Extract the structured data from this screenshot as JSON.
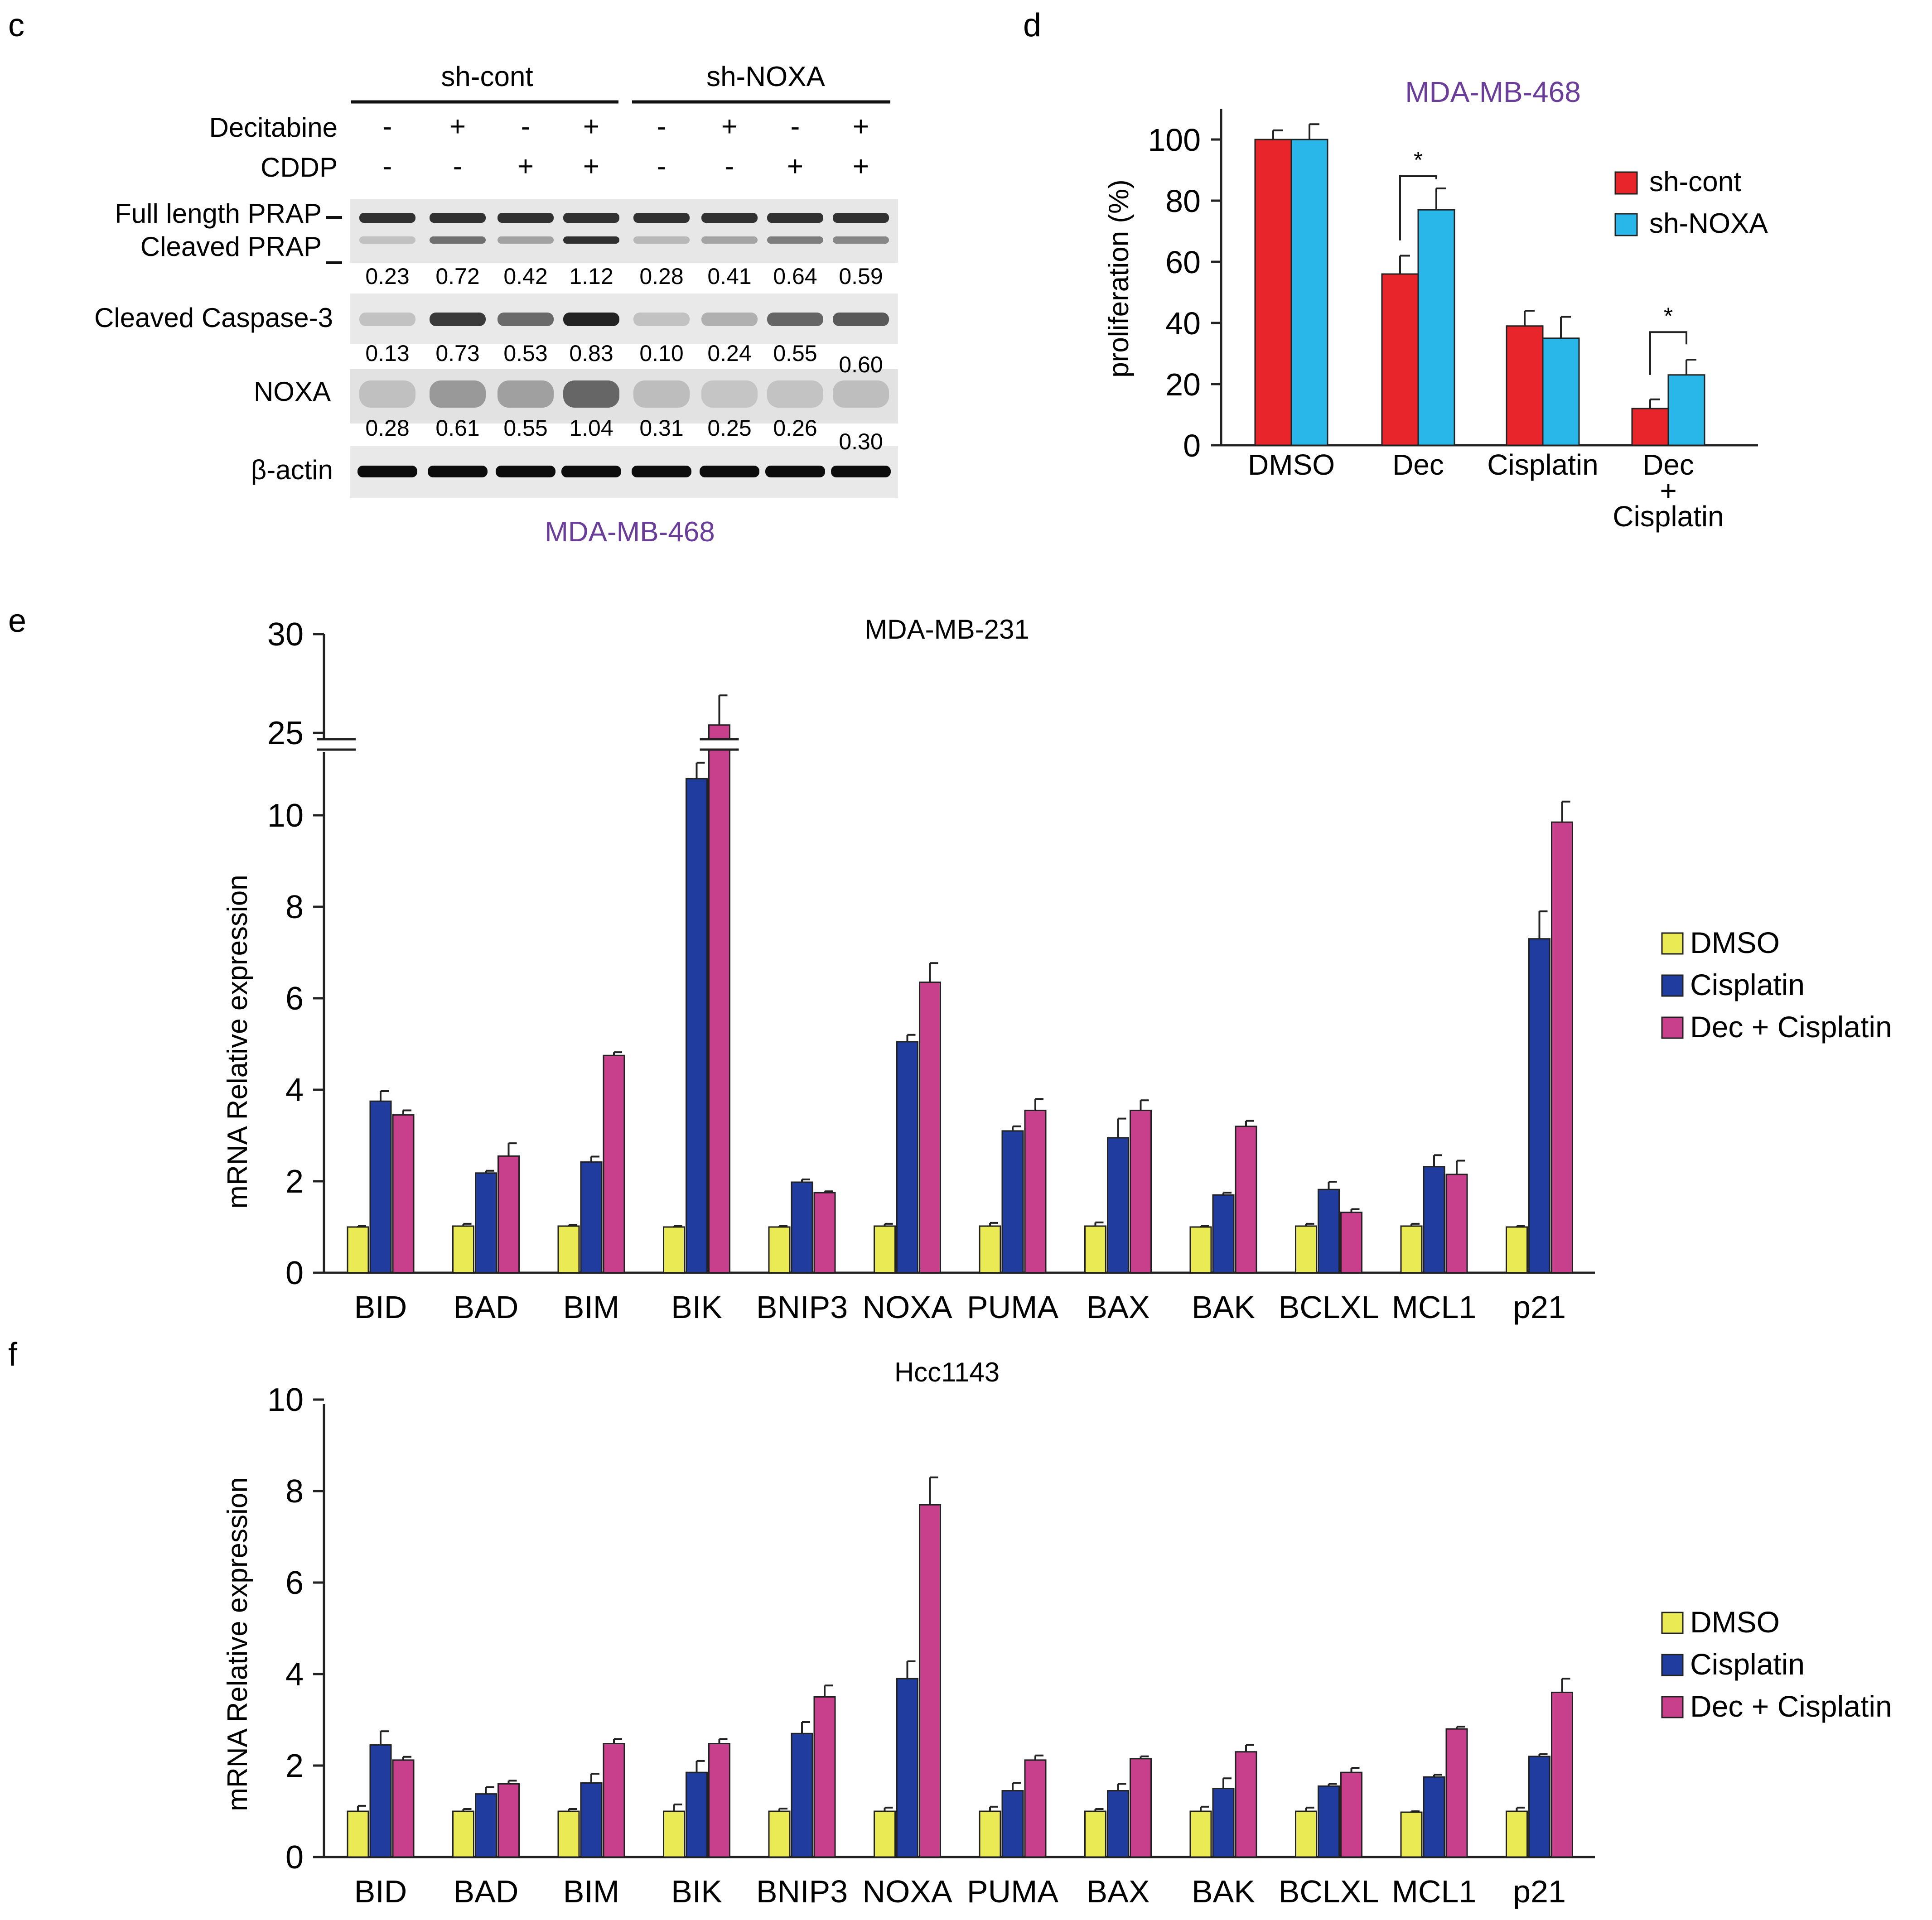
{
  "colors": {
    "sh_cont": "#e8252a",
    "sh_noxa": "#29b6e8",
    "dmso": "#eaea55",
    "cisplatin": "#1f3c9e",
    "dec_cis": "#c8408c",
    "purple_text": "#6a3d9a"
  },
  "panel_c": {
    "letter": "c",
    "groups": [
      "sh-cont",
      "sh-NOXA"
    ],
    "row_labels": {
      "decitabine": "Decitabine",
      "cddp": "CDDP"
    },
    "decitabine": [
      "-",
      "+",
      "-",
      "+",
      "-",
      "+",
      "-",
      "+"
    ],
    "cddp": [
      "-",
      "-",
      "+",
      "+",
      "-",
      "-",
      "+",
      "+"
    ],
    "band_labels": {
      "full_parp": "Full length PRAP",
      "cleaved_parp": "Cleaved PRAP",
      "caspase": "Cleaved Caspase-3",
      "noxa": "NOXA",
      "actin": "β-actin"
    },
    "parp_values": [
      "0.23",
      "0.72",
      "0.42",
      "1.12",
      "0.28",
      "0.41",
      "0.64",
      "0.59"
    ],
    "caspase_values": [
      "0.13",
      "0.73",
      "0.53",
      "0.83",
      "0.10",
      "0.24",
      "0.55",
      "0.60"
    ],
    "noxa_values": [
      "0.28",
      "0.61",
      "0.55",
      "1.04",
      "0.31",
      "0.25",
      "0.26",
      "0.30"
    ],
    "cell_line": "MDA-MB-468"
  },
  "chart_data": [
    {
      "panel": "d",
      "type": "bar",
      "title": "MDA-MB-468",
      "xlabel": "",
      "ylabel": "proliferation (%)",
      "ylim": [
        0,
        110
      ],
      "yticks": [
        0,
        20,
        40,
        60,
        80,
        100
      ],
      "categories": [
        "DMSO",
        "Dec",
        "Cisplatin",
        "Dec + Cisplatin"
      ],
      "category_lines": [
        [
          "DMSO"
        ],
        [
          "Dec"
        ],
        [
          "Cisplatin"
        ],
        [
          "Dec",
          "+",
          "Cisplatin"
        ]
      ],
      "series": [
        {
          "name": "sh-cont",
          "values": [
            100,
            56,
            39,
            12
          ],
          "errors": [
            3,
            6,
            5,
            3
          ]
        },
        {
          "name": "sh-NOXA",
          "values": [
            100,
            77,
            35,
            23
          ],
          "errors": [
            5,
            7,
            7,
            5
          ]
        }
      ],
      "significance": [
        {
          "category": "Dec",
          "label": "*"
        },
        {
          "category": "Dec + Cisplatin",
          "label": "*"
        }
      ],
      "legend": "top-right"
    },
    {
      "panel": "e",
      "type": "bar",
      "title": "MDA-MB-231",
      "xlabel": "",
      "ylabel": "mRNA Relative expression",
      "ylim": [
        0,
        30
      ],
      "axis_break": [
        12.5,
        24.5
      ],
      "yticks": [
        0,
        2,
        4,
        6,
        8,
        10,
        25,
        30
      ],
      "categories": [
        "BID",
        "BAD",
        "BIM",
        "BIK",
        "BNIP3",
        "NOXA",
        "PUMA",
        "BAX",
        "BAK",
        "BCLXL",
        "MCL1",
        "p21"
      ],
      "series": [
        {
          "name": "DMSO",
          "values": [
            1,
            1.02,
            1.02,
            1,
            1,
            1.02,
            1.02,
            1.02,
            1,
            1.02,
            1.02,
            1
          ],
          "errors": [
            0.02,
            0.05,
            0.03,
            0.02,
            0.02,
            0.05,
            0.07,
            0.08,
            0.02,
            0.05,
            0.05,
            0.02
          ]
        },
        {
          "name": "Cisplatin",
          "values": [
            3.75,
            2.18,
            2.42,
            10.8,
            1.98,
            5.05,
            3.1,
            2.95,
            1.7,
            1.82,
            2.32,
            7.3
          ]
        },
        {
          "name": "Dec + Cisplatin",
          "values": [
            3.45,
            2.55,
            4.75,
            25.4,
            1.75,
            6.35,
            3.55,
            3.55,
            3.2,
            1.32,
            2.15,
            9.85
          ]
        }
      ],
      "errors_cis": [
        0.22,
        0.05,
        0.12,
        0.35,
        0.06,
        0.15,
        0.1,
        0.42,
        0.05,
        0.17,
        0.25,
        0.6
      ],
      "errors_dec": [
        0.1,
        0.28,
        0.07,
        1.5,
        0.03,
        0.42,
        0.25,
        0.22,
        0.12,
        0.07,
        0.3,
        0.45
      ],
      "legend": "right"
    },
    {
      "panel": "f",
      "type": "bar",
      "title": "Hcc1143",
      "xlabel": "",
      "ylabel": "mRNA Relative expression",
      "ylim": [
        0,
        10
      ],
      "yticks": [
        0,
        2,
        4,
        6,
        8,
        10
      ],
      "categories": [
        "BID",
        "BAD",
        "BIM",
        "BIK",
        "BNIP3",
        "NOXA",
        "PUMA",
        "BAX",
        "BAK",
        "BCLXL",
        "MCL1",
        "p21"
      ],
      "series": [
        {
          "name": "DMSO",
          "values": [
            1,
            1,
            1,
            1,
            1,
            1,
            1,
            1,
            1,
            1,
            0.98,
            1
          ]
        },
        {
          "name": "Cisplatin",
          "values": [
            2.45,
            1.38,
            1.62,
            1.85,
            2.7,
            3.9,
            1.45,
            1.45,
            1.5,
            1.55,
            1.75,
            2.2
          ]
        },
        {
          "name": "Dec + Cisplatin",
          "values": [
            2.12,
            1.6,
            2.48,
            2.48,
            3.5,
            7.7,
            2.12,
            2.15,
            2.3,
            1.85,
            2.8,
            3.6
          ]
        }
      ],
      "errors_dmso": [
        0.12,
        0.05,
        0.05,
        0.15,
        0.06,
        0.08,
        0.1,
        0.05,
        0.1,
        0.08,
        0.02,
        0.08
      ],
      "errors_cis": [
        0.3,
        0.15,
        0.2,
        0.25,
        0.25,
        0.38,
        0.17,
        0.15,
        0.22,
        0.05,
        0.05,
        0.05
      ],
      "errors_dec": [
        0.07,
        0.07,
        0.1,
        0.1,
        0.25,
        0.6,
        0.1,
        0.05,
        0.15,
        0.1,
        0.05,
        0.3
      ],
      "legend": "right"
    }
  ]
}
